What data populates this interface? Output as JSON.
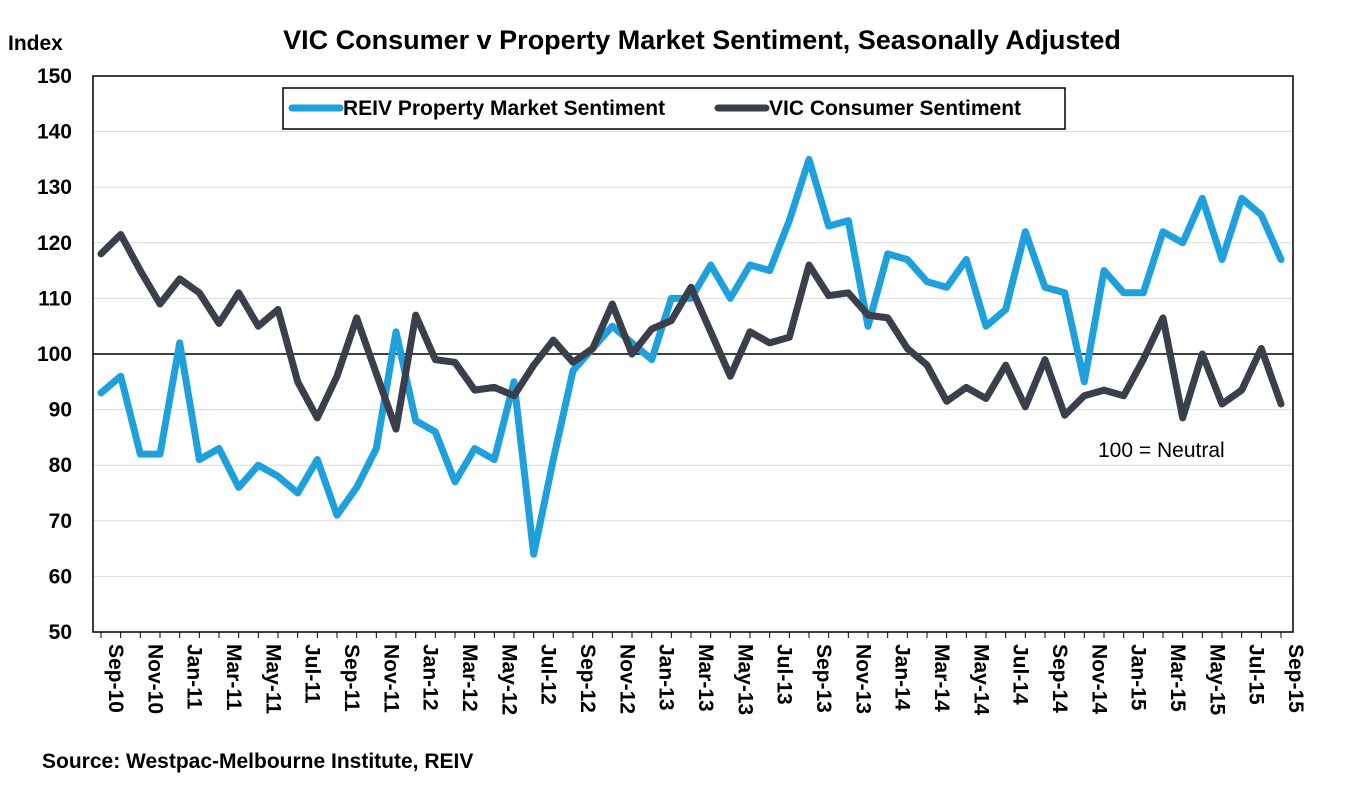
{
  "chart_data": {
    "type": "line",
    "title": "VIC Consumer v Property Market Sentiment, Seasonally Adjusted",
    "ylabel": "Index",
    "xlabel": "",
    "ylim": [
      50,
      150
    ],
    "yticks": [
      50,
      60,
      70,
      80,
      90,
      100,
      110,
      120,
      130,
      140,
      150
    ],
    "reference_line": 100,
    "annotation": "100 = Neutral",
    "source": "Source:  Westpac-Melbourne Institute, REIV",
    "legend_position": "top-left inside",
    "grid": "horizontal",
    "x": [
      "Sep-10",
      "Oct-10",
      "Nov-10",
      "Dec-10",
      "Jan-11",
      "Feb-11",
      "Mar-11",
      "Apr-11",
      "May-11",
      "Jun-11",
      "Jul-11",
      "Aug-11",
      "Sep-11",
      "Oct-11",
      "Nov-11",
      "Dec-11",
      "Jan-12",
      "Feb-12",
      "Mar-12",
      "Apr-12",
      "May-12",
      "Jun-12",
      "Jul-12",
      "Aug-12",
      "Sep-12",
      "Oct-12",
      "Nov-12",
      "Dec-12",
      "Jan-13",
      "Feb-13",
      "Mar-13",
      "Apr-13",
      "May-13",
      "Jun-13",
      "Jul-13",
      "Aug-13",
      "Sep-13",
      "Oct-13",
      "Nov-13",
      "Dec-13",
      "Jan-14",
      "Feb-14",
      "Mar-14",
      "Apr-14",
      "May-14",
      "Jun-14",
      "Jul-14",
      "Aug-14",
      "Sep-14",
      "Oct-14",
      "Nov-14",
      "Dec-14",
      "Jan-15",
      "Feb-15",
      "Mar-15",
      "Apr-15",
      "May-15",
      "Jun-15",
      "Jul-15",
      "Aug-15",
      "Sep-15"
    ],
    "xtick_labels": [
      "Sep-10",
      "Nov-10",
      "Jan-11",
      "Mar-11",
      "May-11",
      "Jul-11",
      "Sep-11",
      "Nov-11",
      "Jan-12",
      "Mar-12",
      "May-12",
      "Jul-12",
      "Sep-12",
      "Nov-12",
      "Jan-13",
      "Mar-13",
      "May-13",
      "Jul-13",
      "Sep-13",
      "Nov-13",
      "Jan-14",
      "Mar-14",
      "May-14",
      "Jul-14",
      "Sep-14",
      "Nov-14",
      "Jan-15",
      "Mar-15",
      "May-15",
      "Jul-15",
      "Sep-15"
    ],
    "series": [
      {
        "name": "REIV Property Market Sentiment",
        "color": "#1ea0dc",
        "values": [
          93,
          96,
          82,
          82,
          102,
          81,
          83,
          76,
          80,
          78,
          75,
          81,
          71,
          76,
          83,
          104,
          88,
          86,
          77,
          83,
          81,
          95,
          64,
          81,
          97,
          101,
          105,
          102,
          99,
          110,
          110,
          116,
          110,
          116,
          115,
          124,
          135,
          123,
          124,
          105,
          118,
          117,
          113,
          112,
          117,
          105,
          108,
          122,
          112,
          111,
          95,
          115,
          111,
          111,
          122,
          120,
          128,
          117,
          128,
          125,
          117
        ]
      },
      {
        "name": "VIC Consumer Sentiment",
        "color": "#3a3f4b",
        "values": [
          118,
          121.5,
          115,
          109,
          113.5,
          111,
          105.5,
          111,
          105,
          108,
          95,
          88.5,
          96,
          106.5,
          96.5,
          86.5,
          107,
          99,
          98.5,
          93.5,
          94,
          92.5,
          98,
          102.5,
          98.5,
          101,
          109,
          100,
          104.5,
          106,
          112,
          104,
          96,
          104,
          102,
          103,
          116,
          110.5,
          111,
          107,
          106.5,
          101,
          98,
          91.5,
          94,
          92,
          98,
          90.5,
          99,
          89,
          92.5,
          93.5,
          92.5,
          99,
          106.5,
          88.5,
          100,
          91,
          93.5,
          101,
          91
        ]
      }
    ]
  }
}
